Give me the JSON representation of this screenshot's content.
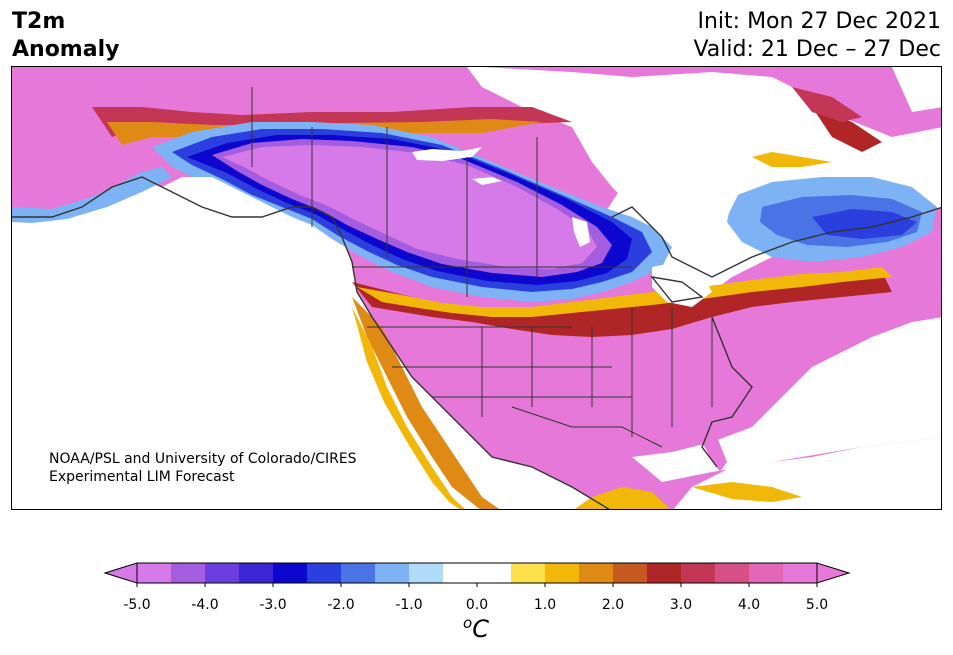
{
  "header": {
    "title_line1": "T2m",
    "title_line2": "Anomaly",
    "init": "Init: Mon 27 Dec 2021",
    "valid": "Valid: 21 Dec – 27 Dec"
  },
  "map": {
    "region": "North America",
    "field": "2-m temperature anomaly forecast",
    "credit_line1": "NOAA/PSL and University of Colorado/CIRES",
    "credit_line2": "Experimental LIM Forecast"
  },
  "colorbar": {
    "unit_main": "C",
    "unit_sup": "o",
    "ticks": [
      "-5.0",
      "-4.0",
      "-3.0",
      "-2.0",
      "-1.0",
      "0.0",
      "1.0",
      "2.0",
      "3.0",
      "4.0",
      "5.0"
    ],
    "extend": "both",
    "colors": [
      "#d57ae8",
      "#a45ddf",
      "#6b3fdf",
      "#3a26d4",
      "#0c06cf",
      "#2b3fde",
      "#4a73e6",
      "#7db3f4",
      "#b0dcf9",
      "#ffffff",
      "#ffffff",
      "#fbe04b",
      "#f2b809",
      "#e08a16",
      "#c65920",
      "#b02626",
      "#c43656",
      "#d45087",
      "#e168b8",
      "#e578d8"
    ],
    "under_color": "#d57ae8",
    "over_color": "#e878d8"
  }
}
